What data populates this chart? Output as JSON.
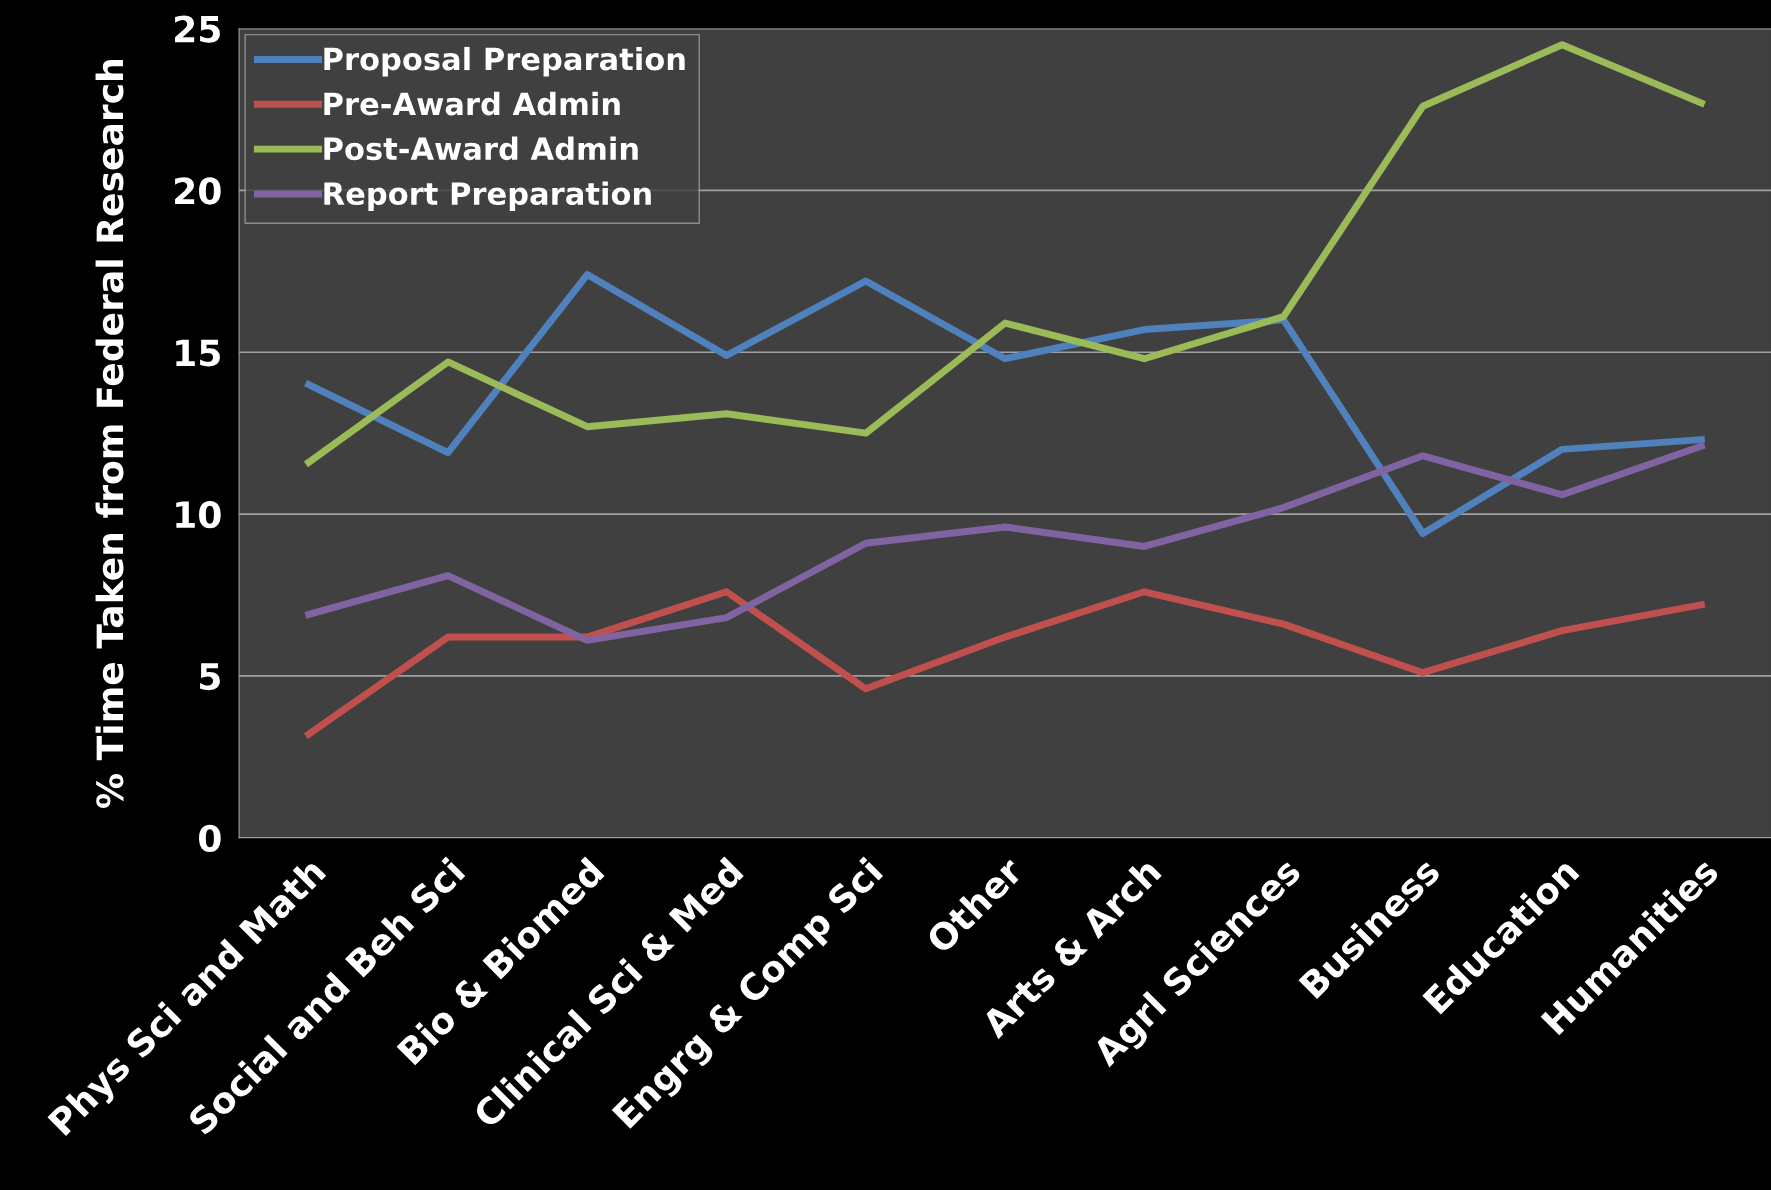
{
  "chart_data": {
    "type": "line",
    "ylabel": "% Time Taken from Federal Research",
    "categories": [
      "Phys Sci and Math",
      "Social and Beh Sci",
      "Bio & Biomed",
      "Clinical Sci & Med",
      "Engrg & Comp Sci",
      "Other",
      "Arts & Arch",
      "Agrl Sciences",
      "Business",
      "Education",
      "Humanities"
    ],
    "series": [
      {
        "name": "Proposal Preparation",
        "color": "#4f81bd",
        "values": [
          14.0,
          11.9,
          17.4,
          14.9,
          17.2,
          14.8,
          15.7,
          16.0,
          9.4,
          12.0,
          12.3
        ]
      },
      {
        "name": "Pre-Award Admin",
        "color": "#c0504d",
        "values": [
          3.2,
          6.2,
          6.2,
          7.6,
          4.6,
          6.2,
          7.6,
          6.6,
          5.1,
          6.4,
          7.2
        ]
      },
      {
        "name": "Post-Award Admin",
        "color": "#9bbb59",
        "values": [
          11.6,
          14.7,
          12.7,
          13.1,
          12.5,
          15.9,
          14.8,
          16.1,
          22.6,
          24.5,
          22.7
        ]
      },
      {
        "name": "Report Preparation",
        "color": "#8064a2",
        "values": [
          6.9,
          8.1,
          6.1,
          6.8,
          9.1,
          9.6,
          9.0,
          10.2,
          11.8,
          10.6,
          12.1
        ]
      }
    ],
    "ylim": [
      0,
      25
    ],
    "yticks": [
      0,
      5,
      10,
      15,
      20,
      25
    ],
    "grid": "y",
    "legend": "top left",
    "marker": "none",
    "line_style": "solid"
  }
}
